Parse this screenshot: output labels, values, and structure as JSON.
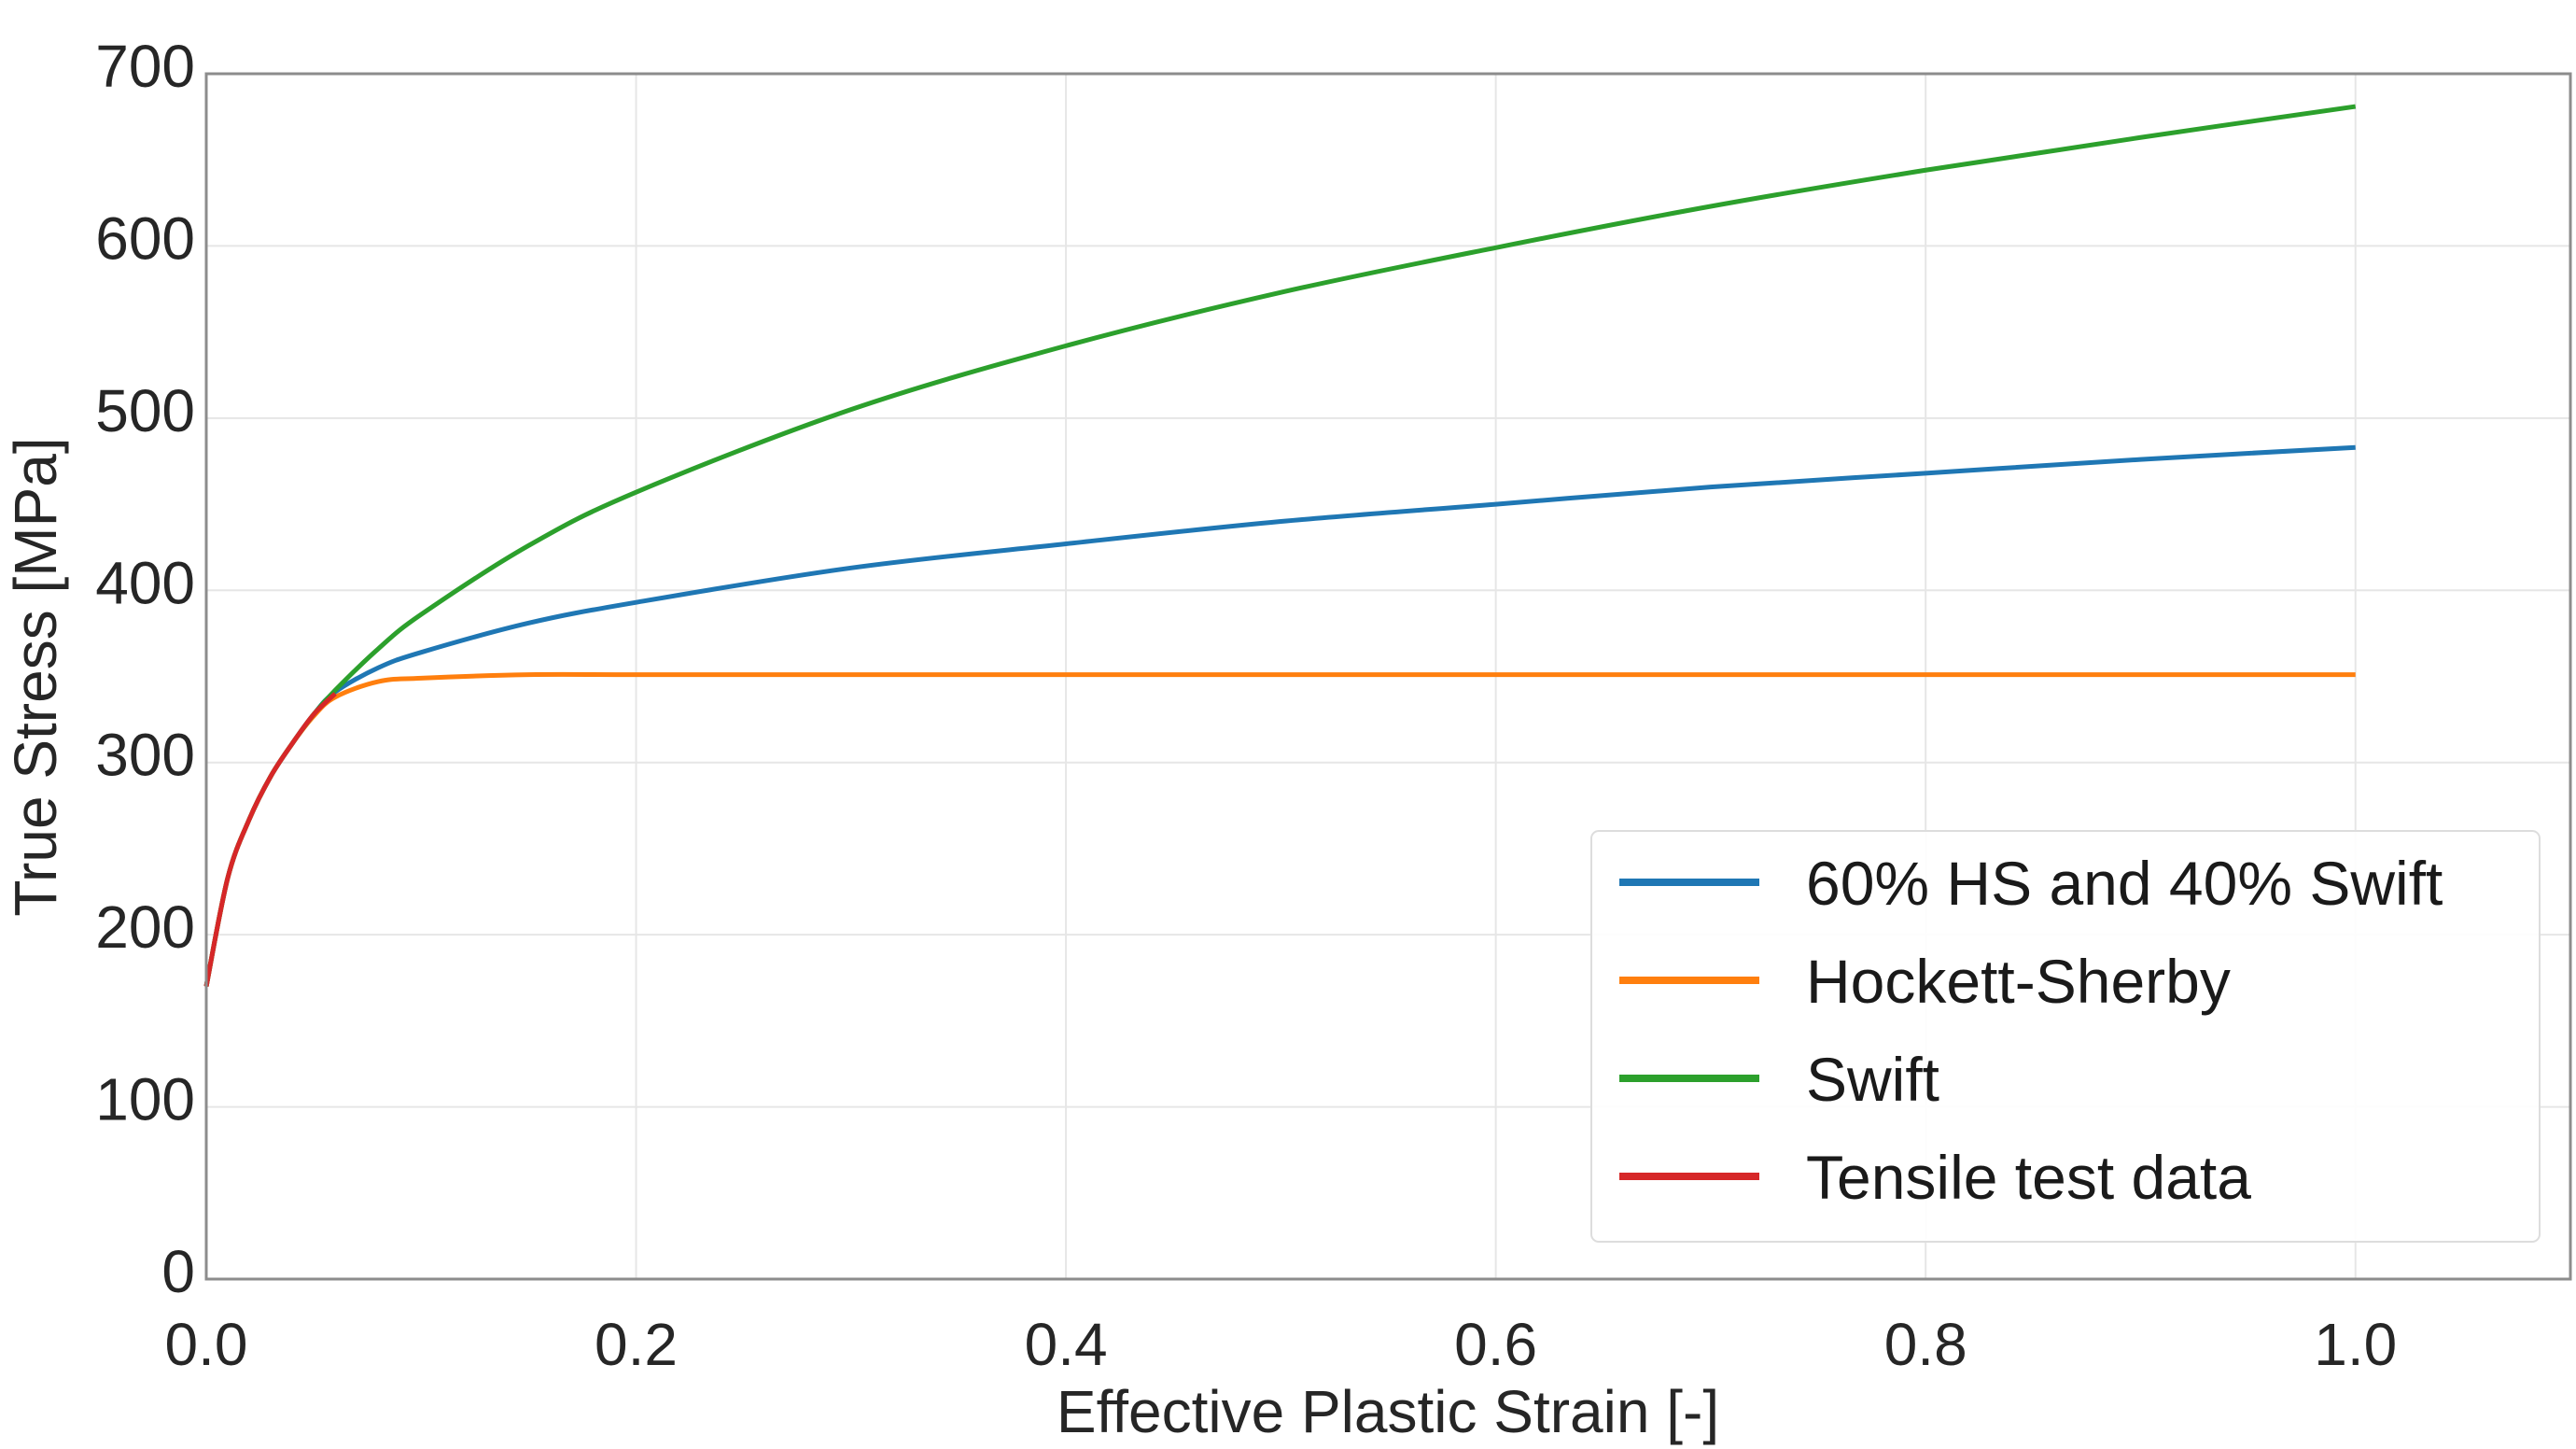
{
  "chart_data": {
    "type": "line",
    "title": "",
    "xlabel": "Effective Plastic Strain [-]",
    "ylabel": "True Stress [MPa]",
    "xlim": [
      0.0,
      1.1
    ],
    "ylim": [
      0,
      700
    ],
    "grid": true,
    "legend_position": "lower-right",
    "xticks": [
      "0.0",
      "0.2",
      "0.4",
      "0.6",
      "0.8",
      "1.0"
    ],
    "yticks": [
      "0",
      "100",
      "200",
      "300",
      "400",
      "500",
      "600",
      "700"
    ],
    "series": [
      {
        "name": "60% HS and 40% Swift",
        "color": "#1f77b4",
        "x": [
          0,
          0.01,
          0.02,
          0.03,
          0.04,
          0.05,
          0.06,
          0.08,
          0.1,
          0.15,
          0.2,
          0.3,
          0.4,
          0.5,
          0.6,
          0.7,
          0.8,
          0.9,
          1.0
        ],
        "y": [
          170,
          233,
          267,
          292,
          311,
          328,
          341,
          355,
          364,
          381,
          393,
          413,
          427,
          440,
          450,
          460,
          468,
          476,
          483
        ]
      },
      {
        "name": "Hockett-Sherby",
        "color": "#ff7f0e",
        "x": [
          0,
          0.01,
          0.02,
          0.03,
          0.04,
          0.05,
          0.06,
          0.08,
          0.1,
          0.15,
          0.2,
          0.3,
          0.4,
          0.5,
          0.6,
          0.7,
          0.8,
          0.9,
          1.0
        ],
        "y": [
          170,
          233,
          267,
          292,
          311,
          327,
          338,
          347,
          349,
          351,
          351,
          351,
          351,
          351,
          351,
          351,
          351,
          351,
          351
        ]
      },
      {
        "name": "Swift",
        "color": "#2ca02c",
        "x": [
          0,
          0.01,
          0.02,
          0.03,
          0.04,
          0.05,
          0.06,
          0.08,
          0.1,
          0.15,
          0.2,
          0.3,
          0.4,
          0.5,
          0.6,
          0.7,
          0.8,
          0.9,
          1.0
        ],
        "y": [
          170,
          233,
          267,
          292,
          311,
          328,
          342,
          366,
          386,
          426,
          457,
          505,
          542,
          573,
          599,
          623,
          644,
          663,
          681
        ]
      },
      {
        "name": "Tensile test data",
        "color": "#d62728",
        "x": [
          0,
          0.01,
          0.02,
          0.03,
          0.04,
          0.05,
          0.06
        ],
        "y": [
          170,
          233,
          267,
          292,
          311,
          328,
          340
        ]
      }
    ]
  }
}
